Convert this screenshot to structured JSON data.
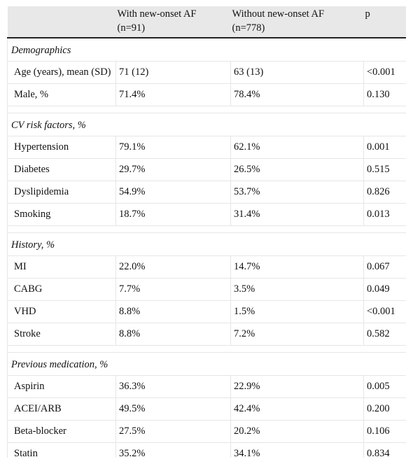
{
  "columns": {
    "c1": "",
    "c2_line1": "With new-onset AF",
    "c2_line2": "(n=91)",
    "c3_line1": "Without new-onset AF",
    "c3_line2": "(n=778)",
    "c4": "p"
  },
  "sections": [
    {
      "title": "Demographics",
      "rows": [
        {
          "label": "Age (years), mean (SD)",
          "with": "71 (12)",
          "without": "63 (13)",
          "p": "<0.001"
        },
        {
          "label": "Male, %",
          "with": "71.4%",
          "without": "78.4%",
          "p": "0.130"
        }
      ]
    },
    {
      "title": "CV risk factors, %",
      "rows": [
        {
          "label": "Hypertension",
          "with": "79.1%",
          "without": "62.1%",
          "p": "0.001"
        },
        {
          "label": "Diabetes",
          "with": "29.7%",
          "without": "26.5%",
          "p": "0.515"
        },
        {
          "label": "Dyslipidemia",
          "with": "54.9%",
          "without": "53.7%",
          "p": "0.826"
        },
        {
          "label": "Smoking",
          "with": "18.7%",
          "without": "31.4%",
          "p": "0.013"
        }
      ]
    },
    {
      "title": "History, %",
      "rows": [
        {
          "label": "MI",
          "with": "22.0%",
          "without": "14.7%",
          "p": "0.067"
        },
        {
          "label": "CABG",
          "with": "7.7%",
          "without": "3.5%",
          "p": "0.049"
        },
        {
          "label": "VHD",
          "with": "8.8%",
          "without": "1.5%",
          "p": "<0.001"
        },
        {
          "label": "Stroke",
          "with": "8.8%",
          "without": "7.2%",
          "p": "0.582"
        }
      ]
    },
    {
      "title": "Previous medication, %",
      "rows": [
        {
          "label": "Aspirin",
          "with": "36.3%",
          "without": "22.9%",
          "p": "0.005"
        },
        {
          "label": "ACEI/ARB",
          "with": "49.5%",
          "without": "42.4%",
          "p": "0.200"
        },
        {
          "label": "Beta-blocker",
          "with": "27.5%",
          "without": "20.2%",
          "p": "0.106"
        },
        {
          "label": "Statin",
          "with": "35.2%",
          "without": "34.1%",
          "p": "0.834"
        }
      ]
    }
  ]
}
